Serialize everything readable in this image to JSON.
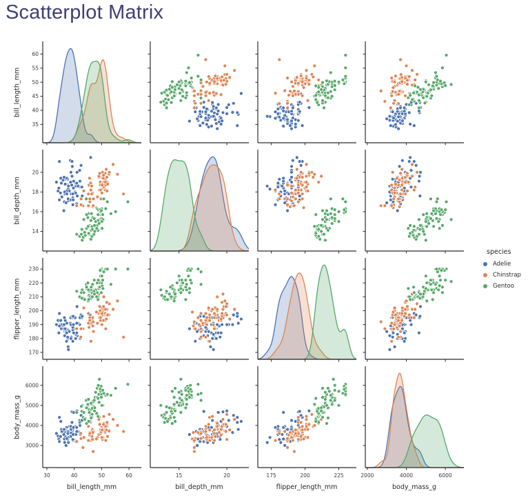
{
  "title": "Scatterplot Matrix",
  "colors": {
    "title": "#3e4075",
    "axis": "#2b2b2b",
    "tick_label": "#3a3a3a",
    "adelie": "#4c72b0",
    "chinstrap": "#dd8452",
    "gentoo": "#55a868"
  },
  "legend": {
    "title": "species",
    "entries": [
      {
        "label": "Adelie",
        "color": "#4c72b0"
      },
      {
        "label": "Chinstrap",
        "color": "#dd8452"
      },
      {
        "label": "Gentoo",
        "color": "#55a868"
      }
    ]
  },
  "chart_data": {
    "type": "scatter",
    "subtype": "scatterplot-matrix",
    "diagonal": "kde",
    "grid": false,
    "legend_position": "right",
    "variables": [
      "bill_length_mm",
      "bill_depth_mm",
      "flipper_length_mm",
      "body_mass_g"
    ],
    "axes": {
      "bill_length_mm": {
        "range": [
          28.5,
          64.5
        ],
        "xticks": [
          30,
          40,
          50,
          60
        ],
        "yticks": [
          35,
          40,
          45,
          50,
          55,
          60
        ]
      },
      "bill_depth_mm": {
        "range": [
          12.0,
          22.3
        ],
        "xticks": [
          15,
          20
        ],
        "yticks": [
          14,
          16,
          18,
          20
        ]
      },
      "flipper_length_mm": {
        "range": [
          165,
          238
        ],
        "xticks": [
          175,
          200,
          225
        ],
        "yticks": [
          170,
          180,
          190,
          200,
          210,
          220,
          230
        ]
      },
      "body_mass_g": {
        "range": [
          1900,
          6950
        ],
        "xticks": [
          2000,
          4000,
          6000
        ],
        "yticks": [
          3000,
          4000,
          5000,
          6000
        ]
      }
    },
    "series": [
      {
        "name": "Adelie",
        "color": "#4c72b0",
        "points": [
          [
            39.1,
            18.7,
            181,
            3750
          ],
          [
            39.5,
            17.4,
            186,
            3800
          ],
          [
            40.3,
            18.0,
            195,
            3250
          ],
          [
            36.7,
            19.3,
            193,
            3450
          ],
          [
            39.3,
            20.6,
            190,
            3650
          ],
          [
            38.9,
            17.8,
            181,
            3625
          ],
          [
            39.2,
            19.6,
            195,
            4675
          ],
          [
            34.1,
            18.1,
            193,
            3475
          ],
          [
            42.0,
            20.2,
            190,
            4250
          ],
          [
            37.8,
            17.1,
            186,
            3300
          ],
          [
            37.8,
            17.3,
            180,
            3700
          ],
          [
            41.1,
            17.6,
            182,
            3200
          ],
          [
            38.6,
            21.2,
            191,
            3800
          ],
          [
            34.6,
            21.1,
            198,
            4400
          ],
          [
            36.6,
            17.8,
            185,
            3700
          ],
          [
            38.7,
            19.0,
            195,
            3450
          ],
          [
            42.5,
            20.7,
            197,
            4500
          ],
          [
            34.4,
            18.4,
            184,
            3325
          ],
          [
            46.0,
            21.5,
            194,
            4200
          ],
          [
            37.8,
            18.3,
            174,
            3400
          ],
          [
            37.7,
            18.7,
            180,
            3600
          ],
          [
            35.9,
            19.2,
            189,
            3800
          ],
          [
            38.2,
            18.1,
            185,
            3950
          ],
          [
            38.8,
            17.2,
            180,
            3800
          ],
          [
            35.3,
            18.9,
            187,
            3800
          ],
          [
            40.6,
            18.6,
            183,
            3550
          ],
          [
            40.5,
            17.9,
            187,
            3200
          ],
          [
            37.9,
            18.6,
            172,
            3150
          ],
          [
            40.5,
            18.9,
            180,
            3950
          ],
          [
            39.5,
            16.7,
            178,
            3250
          ],
          [
            37.2,
            18.1,
            178,
            3900
          ],
          [
            39.5,
            17.8,
            188,
            3300
          ],
          [
            40.9,
            18.9,
            184,
            3900
          ],
          [
            36.4,
            17.0,
            195,
            3325
          ],
          [
            39.2,
            21.1,
            196,
            4150
          ],
          [
            38.8,
            20.0,
            190,
            3950
          ],
          [
            42.2,
            18.5,
            180,
            3550
          ],
          [
            37.6,
            19.3,
            181,
            3300
          ],
          [
            39.8,
            19.1,
            184,
            4650
          ],
          [
            36.5,
            18.0,
            182,
            3150
          ],
          [
            35.0,
            17.9,
            190,
            3450
          ],
          [
            41.0,
            20.0,
            203,
            4725
          ],
          [
            37.0,
            16.9,
            185,
            3000
          ],
          [
            41.4,
            18.6,
            191,
            3700
          ],
          [
            33.5,
            19.0,
            190,
            3600
          ],
          [
            39.7,
            18.4,
            190,
            3900
          ],
          [
            39.6,
            17.2,
            196,
            3550
          ],
          [
            45.8,
            18.9,
            197,
            4150
          ],
          [
            35.5,
            17.5,
            190,
            3700
          ],
          [
            42.8,
            18.5,
            195,
            4250
          ],
          [
            40.9,
            16.8,
            191,
            3700
          ],
          [
            37.2,
            19.4,
            184,
            3900
          ],
          [
            36.2,
            16.1,
            187,
            3550
          ],
          [
            42.1,
            19.1,
            195,
            4000
          ],
          [
            34.6,
            17.2,
            189,
            3200
          ],
          [
            42.9,
            17.6,
            196,
            4700
          ],
          [
            36.7,
            18.8,
            187,
            3800
          ],
          [
            35.1,
            19.4,
            193,
            4200
          ],
          [
            37.3,
            17.8,
            191,
            3350
          ],
          [
            36.3,
            19.5,
            190,
            3800
          ]
        ]
      },
      {
        "name": "Chinstrap",
        "color": "#dd8452",
        "points": [
          [
            46.5,
            17.9,
            192,
            3500
          ],
          [
            50.0,
            19.5,
            196,
            3900
          ],
          [
            51.3,
            19.2,
            193,
            3650
          ],
          [
            45.4,
            18.7,
            188,
            3525
          ],
          [
            52.7,
            19.8,
            197,
            3725
          ],
          [
            45.2,
            17.8,
            198,
            3950
          ],
          [
            46.1,
            18.2,
            178,
            3250
          ],
          [
            51.3,
            18.2,
            197,
            3750
          ],
          [
            46.0,
            18.9,
            195,
            4150
          ],
          [
            51.3,
            19.9,
            198,
            3700
          ],
          [
            46.6,
            17.8,
            193,
            3800
          ],
          [
            51.7,
            20.3,
            194,
            3775
          ],
          [
            47.0,
            17.3,
            185,
            3700
          ],
          [
            52.0,
            18.1,
            201,
            4050
          ],
          [
            45.9,
            17.1,
            190,
            3575
          ],
          [
            50.5,
            19.6,
            201,
            4050
          ],
          [
            50.3,
            20.0,
            197,
            3300
          ],
          [
            58.0,
            17.8,
            181,
            3700
          ],
          [
            46.4,
            18.6,
            190,
            3450
          ],
          [
            49.2,
            18.2,
            195,
            4400
          ],
          [
            42.4,
            17.3,
            181,
            3600
          ],
          [
            48.5,
            17.5,
            191,
            3400
          ],
          [
            43.2,
            16.6,
            187,
            2900
          ],
          [
            50.6,
            19.4,
            193,
            3800
          ],
          [
            46.7,
            17.9,
            195,
            3300
          ],
          [
            52.0,
            19.0,
            197,
            4150
          ],
          [
            50.5,
            18.4,
            200,
            3400
          ],
          [
            49.5,
            19.0,
            200,
            3800
          ],
          [
            46.4,
            17.8,
            191,
            3700
          ],
          [
            52.8,
            20.0,
            205,
            4550
          ],
          [
            40.9,
            16.6,
            187,
            3200
          ],
          [
            54.2,
            20.8,
            201,
            4300
          ],
          [
            42.5,
            16.7,
            187,
            3350
          ],
          [
            49.0,
            19.5,
            198,
            3550
          ],
          [
            49.6,
            18.2,
            193,
            3775
          ],
          [
            50.8,
            19.0,
            210,
            4100
          ],
          [
            50.2,
            18.8,
            202,
            3800
          ],
          [
            45.6,
            19.4,
            194,
            3525
          ],
          [
            51.9,
            19.5,
            206,
            3950
          ],
          [
            46.8,
            16.5,
            189,
            3650
          ],
          [
            45.7,
            17.0,
            195,
            3650
          ],
          [
            55.8,
            19.8,
            207,
            4000
          ],
          [
            43.5,
            18.1,
            202,
            3400
          ],
          [
            49.6,
            18.7,
            195,
            3600
          ],
          [
            50.8,
            18.5,
            201,
            4450
          ],
          [
            50.1,
            17.9,
            190,
            3400
          ],
          [
            49.0,
            19.6,
            212,
            4300
          ],
          [
            51.5,
            18.7,
            187,
            3250
          ],
          [
            49.8,
            17.3,
            198,
            3675
          ],
          [
            48.1,
            16.4,
            199,
            3325
          ],
          [
            51.4,
            19.0,
            201,
            3950
          ],
          [
            45.7,
            17.3,
            193,
            3600
          ],
          [
            50.7,
            19.7,
            203,
            4050
          ],
          [
            42.5,
            17.3,
            187,
            3350
          ],
          [
            52.2,
            18.8,
            197,
            3450
          ],
          [
            45.2,
            16.6,
            191,
            3250
          ],
          [
            49.3,
            19.9,
            203,
            4050
          ],
          [
            50.2,
            18.7,
            198,
            3775
          ],
          [
            46.9,
            16.6,
            192,
            2700
          ]
        ]
      },
      {
        "name": "Gentoo",
        "color": "#55a868",
        "points": [
          [
            46.1,
            13.2,
            211,
            4500
          ],
          [
            50.0,
            16.3,
            230,
            5700
          ],
          [
            48.7,
            14.1,
            210,
            4450
          ],
          [
            50.0,
            15.2,
            218,
            5700
          ],
          [
            47.6,
            14.5,
            215,
            5400
          ],
          [
            46.5,
            13.5,
            210,
            4550
          ],
          [
            45.4,
            14.6,
            211,
            4800
          ],
          [
            46.7,
            15.3,
            219,
            5200
          ],
          [
            43.3,
            13.4,
            209,
            4400
          ],
          [
            46.8,
            15.4,
            215,
            5150
          ],
          [
            40.9,
            13.7,
            214,
            4650
          ],
          [
            49.0,
            16.1,
            216,
            5550
          ],
          [
            45.5,
            13.7,
            214,
            4650
          ],
          [
            48.4,
            14.6,
            213,
            5850
          ],
          [
            45.8,
            14.6,
            210,
            4200
          ],
          [
            49.3,
            15.7,
            217,
            5850
          ],
          [
            42.0,
            13.5,
            210,
            4150
          ],
          [
            49.2,
            15.2,
            221,
            6300
          ],
          [
            46.2,
            14.5,
            209,
            4800
          ],
          [
            48.7,
            15.1,
            222,
            5350
          ],
          [
            50.2,
            14.3,
            218,
            5700
          ],
          [
            45.1,
            14.5,
            215,
            5000
          ],
          [
            46.5,
            14.5,
            213,
            4400
          ],
          [
            46.3,
            15.8,
            215,
            5050
          ],
          [
            42.9,
            13.1,
            215,
            5000
          ],
          [
            46.1,
            15.1,
            215,
            5100
          ],
          [
            44.5,
            14.3,
            216,
            4100
          ],
          [
            47.8,
            15.0,
            215,
            5650
          ],
          [
            48.2,
            14.3,
            210,
            4600
          ],
          [
            50.0,
            15.3,
            220,
            5550
          ],
          [
            47.3,
            15.3,
            222,
            5250
          ],
          [
            42.8,
            14.2,
            209,
            4700
          ],
          [
            45.1,
            14.5,
            207,
            5050
          ],
          [
            59.6,
            17.0,
            230,
            6050
          ],
          [
            49.1,
            14.8,
            220,
            5150
          ],
          [
            48.4,
            16.3,
            220,
            5400
          ],
          [
            42.6,
            13.7,
            213,
            4950
          ],
          [
            44.4,
            17.3,
            219,
            5250
          ],
          [
            44.0,
            13.6,
            208,
            4350
          ],
          [
            48.7,
            15.7,
            208,
            5350
          ],
          [
            45.2,
            15.8,
            215,
            5300
          ],
          [
            49.8,
            15.9,
            229,
            5950
          ],
          [
            43.5,
            15.2,
            213,
            4650
          ],
          [
            51.5,
            16.3,
            230,
            5500
          ],
          [
            46.2,
            14.1,
            217,
            4375
          ],
          [
            55.1,
            16.0,
            230,
            5850
          ],
          [
            44.5,
            15.7,
            217,
            4875
          ],
          [
            48.8,
            16.2,
            222,
            6000
          ],
          [
            47.2,
            13.7,
            214,
            4925
          ],
          [
            43.8,
            13.9,
            208,
            4300
          ],
          [
            46.6,
            14.2,
            210,
            4850
          ],
          [
            47.5,
            14.0,
            212,
            4875
          ],
          [
            45.0,
            15.4,
            220,
            5050
          ],
          [
            50.5,
            15.2,
            216,
            5000
          ],
          [
            49.6,
            16.0,
            225,
            5700
          ],
          [
            53.4,
            15.8,
            219,
            5500
          ],
          [
            49.5,
            16.2,
            229,
            5800
          ],
          [
            50.8,
            17.3,
            228,
            5600
          ],
          [
            52.1,
            17.0,
            230,
            5550
          ],
          [
            47.4,
            14.6,
            212,
            4725
          ],
          [
            50.4,
            15.7,
            222,
            5750
          ],
          [
            45.3,
            13.8,
            208,
            4200
          ],
          [
            50.1,
            15.0,
            225,
            5000
          ],
          [
            49.9,
            16.1,
            213,
            5400
          ]
        ]
      }
    ]
  }
}
